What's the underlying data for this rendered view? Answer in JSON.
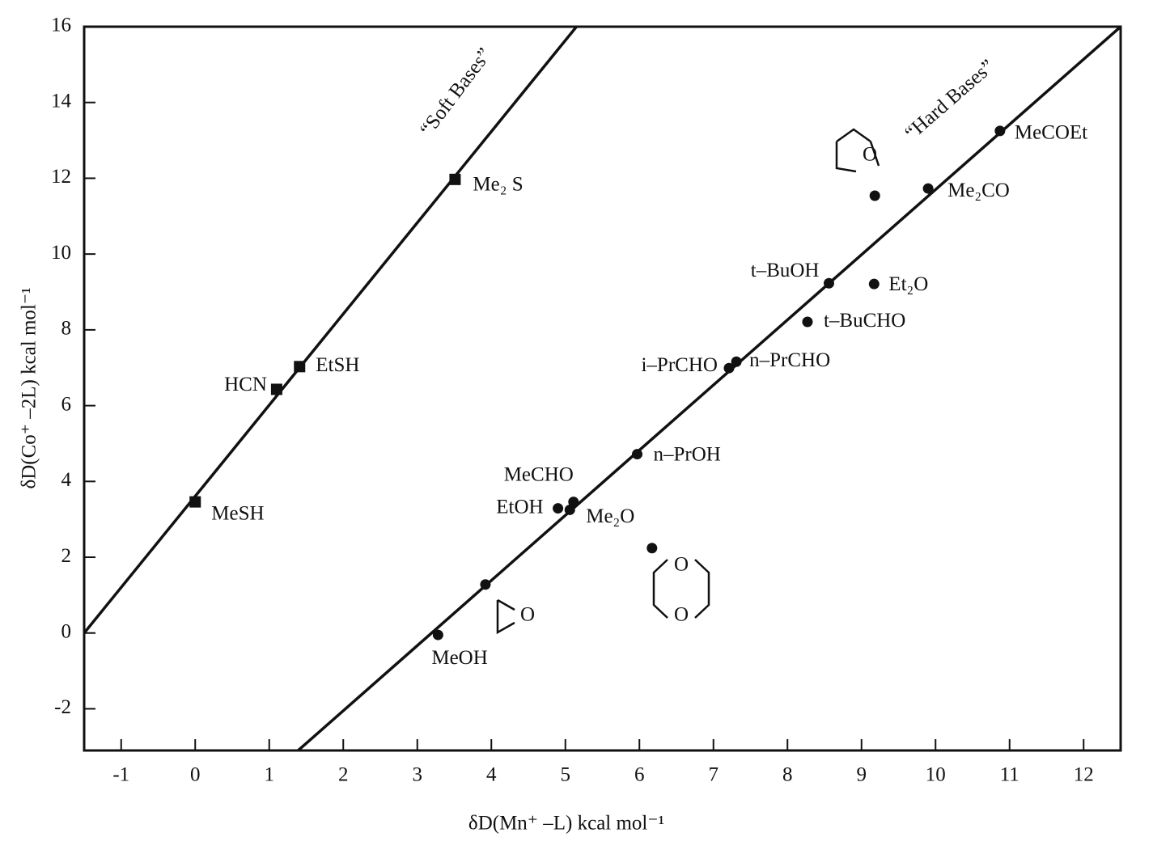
{
  "chart_data": {
    "type": "scatter",
    "xlabel": "δD(Mn⁺ –L)  kcal mol⁻¹",
    "ylabel": "δD(Co⁺ –2L) kcal mol⁻¹",
    "xlim": [
      -1.5,
      12.5
    ],
    "ylim": [
      -3.1,
      16
    ],
    "xticks": [
      -1,
      0,
      1,
      2,
      3,
      4,
      5,
      6,
      7,
      8,
      9,
      10,
      11,
      12
    ],
    "yticks": [
      -2,
      0,
      2,
      4,
      6,
      8,
      10,
      12,
      14,
      16
    ],
    "series": [
      {
        "name": "“Soft Bases”",
        "marker": "square",
        "color": "#111111",
        "x": [
          0,
          1.1,
          1.41,
          3.51
        ],
        "y": [
          3.46,
          6.43,
          7.03,
          11.97
        ],
        "labels": [
          "MeSH",
          "HCN",
          "EtSH",
          "Me₂ S"
        ],
        "fit_x": [
          -1.5,
          5.15
        ],
        "fit_y": [
          0,
          16
        ]
      },
      {
        "name": "“Hard Bases”",
        "marker": "circle",
        "color": "#111111",
        "x": [
          3.28,
          3.92,
          4.9,
          5.06,
          5.11,
          6.17,
          5.97,
          7.21,
          7.31,
          8.27,
          8.56,
          9.17,
          9.18,
          9.9,
          10.87
        ],
        "y": [
          -0.05,
          1.28,
          3.29,
          3.25,
          3.46,
          2.24,
          4.72,
          6.99,
          7.16,
          8.21,
          9.23,
          9.21,
          11.54,
          11.73,
          13.25
        ],
        "labels": [
          "MeOH",
          null,
          "EtOH",
          "Me₂O",
          "MeCHO",
          null,
          "n–PrOH",
          "i–PrCHO",
          "n–PrCHO",
          "t–BuCHO",
          "t–BuOH",
          "Et₂O",
          null,
          "Me₂CO",
          "MeCOEt"
        ],
        "fit_x": [
          1.39,
          12.5
        ],
        "fit_y": [
          -3.1,
          16
        ]
      }
    ],
    "annotations": [
      "O",
      "O",
      "O",
      "O"
    ]
  }
}
